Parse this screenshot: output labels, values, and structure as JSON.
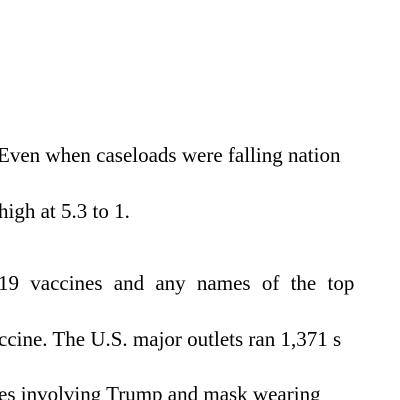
{
  "document": {
    "lines": [
      "Even when caseloads were falling nation",
      "high at 5.3 to 1.",
      "19 vaccines and any names of the top",
      "ccine.  The U.S. major outlets ran 1,371 s",
      "es involving Trump and mask wearing"
    ]
  }
}
